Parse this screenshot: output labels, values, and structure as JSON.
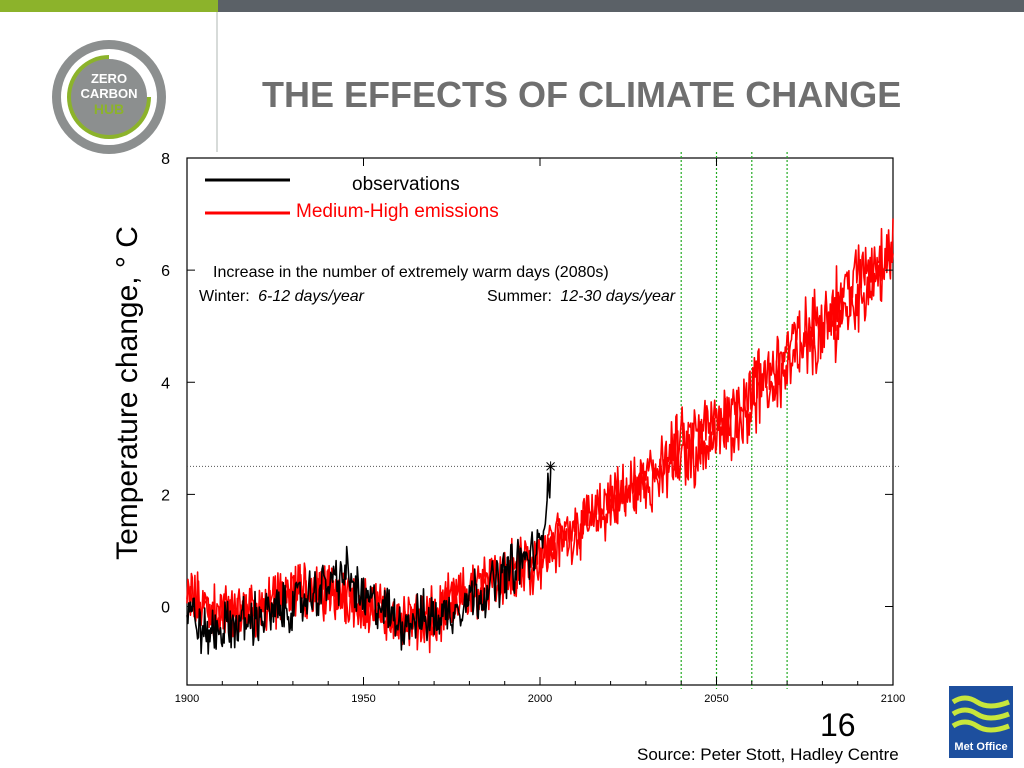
{
  "slide": {
    "title": "THE EFFECTS OF CLIMATE CHANGE",
    "page_number": "16",
    "source": "Source: Peter Stott, Hadley Centre",
    "logo_text": [
      "ZERO",
      "CARBON",
      "HUB"
    ],
    "partner_logo_text": "Met Office"
  },
  "colors": {
    "brand_green": "#8cb32b",
    "header_gray": "#5b6167",
    "title_gray": "#6f6f6f",
    "observations": "#000000",
    "scenario": "#ff0000",
    "marker_lines": "#22aa22",
    "met_office_blue": "#1d4f9e"
  },
  "chart_data": {
    "type": "line",
    "ylabel": "Temperature change, ° C",
    "xlabel": "",
    "xlim": [
      1900,
      2100
    ],
    "ylim": [
      -1.4,
      8
    ],
    "x_ticks": [
      1900,
      1950,
      2000,
      2050,
      2100
    ],
    "y_ticks": [
      0,
      2,
      4,
      6,
      8
    ],
    "grid": false,
    "legend_position": "top-left",
    "legend": [
      "observations",
      "Medium-High emissions"
    ],
    "annotation": {
      "heading": "Increase in the number of extremely warm days (2080s)",
      "winter_label": "Winter:",
      "winter_value": "6-12 days/year",
      "summer_label": "Summer:",
      "summer_value": "12-30 days/year"
    },
    "reference_line_y": 2.5,
    "vertical_markers": [
      2040,
      2050,
      2060,
      2070
    ],
    "marker_point": {
      "x": 2003,
      "y": 2.5
    },
    "series": [
      {
        "name": "observations",
        "color": "#000000",
        "x": [
          1900,
          1905,
          1910,
          1915,
          1920,
          1925,
          1930,
          1935,
          1940,
          1945,
          1950,
          1955,
          1960,
          1965,
          1970,
          1975,
          1980,
          1985,
          1990,
          1995,
          2000,
          2003
        ],
        "y": [
          0.0,
          -0.5,
          -0.4,
          -0.3,
          -0.2,
          -0.1,
          0.0,
          0.2,
          0.4,
          0.6,
          0.1,
          0.0,
          -0.3,
          -0.2,
          -0.2,
          -0.1,
          0.2,
          0.3,
          0.6,
          0.8,
          1.0,
          2.5
        ]
      },
      {
        "name": "Medium-High emissions",
        "color": "#ff0000",
        "x": [
          1900,
          1910,
          1920,
          1930,
          1940,
          1950,
          1960,
          1970,
          1980,
          1990,
          2000,
          2010,
          2020,
          2030,
          2040,
          2050,
          2060,
          2070,
          2080,
          2090,
          2100
        ],
        "y": [
          0.1,
          -0.2,
          0.0,
          0.2,
          0.2,
          0.1,
          -0.3,
          -0.1,
          0.3,
          0.5,
          0.8,
          1.3,
          1.7,
          2.2,
          2.6,
          3.0,
          3.6,
          4.2,
          4.8,
          5.5,
          6.2
        ]
      },
      {
        "name": "",
        "color": "#ff0000",
        "x": [
          1900,
          1910,
          1920,
          1930,
          1940,
          1950,
          1960,
          1970,
          1980,
          1990,
          2000,
          2010,
          2020,
          2030,
          2040,
          2050,
          2060,
          2070,
          2080,
          2090,
          2100
        ],
        "y": [
          0.2,
          -0.1,
          -0.1,
          0.3,
          0.4,
          0.0,
          -0.2,
          -0.3,
          0.2,
          0.6,
          1.0,
          1.4,
          1.9,
          2.3,
          2.9,
          3.3,
          3.9,
          4.6,
          5.2,
          5.9,
          6.5
        ]
      }
    ]
  }
}
